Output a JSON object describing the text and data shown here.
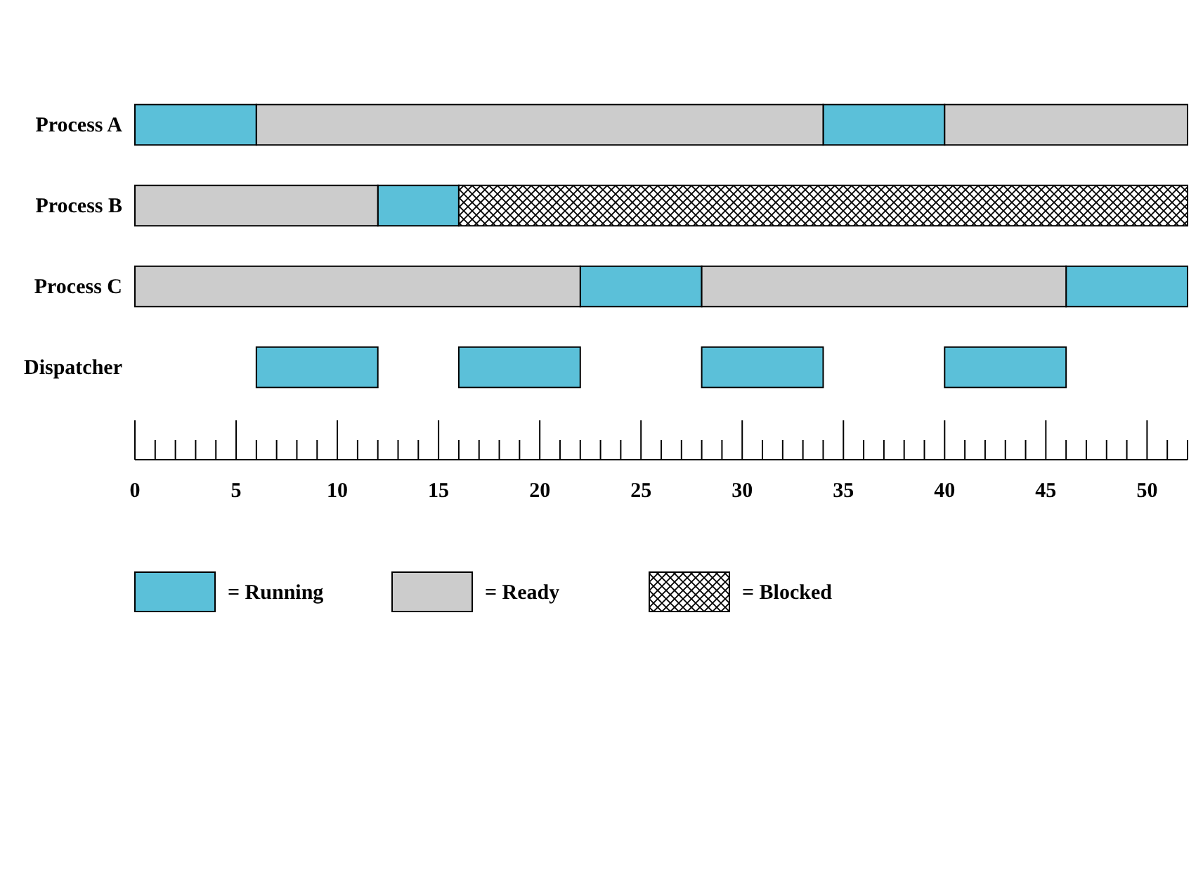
{
  "chart_data": {
    "type": "bar",
    "orientation": "horizontal",
    "categories": [
      "Process A",
      "Process B",
      "Process C",
      "Dispatcher"
    ],
    "series": [
      {
        "name": "= Running",
        "color": "#5bc0d9",
        "values": [
          6,
          4,
          6,
          6
        ],
        "base": [
          0,
          12,
          22,
          6
        ]
      },
      {
        "color": "#5bc0d9",
        "values": [
          6,
          null,
          6,
          6
        ],
        "base": [
          34,
          null,
          46,
          16
        ]
      },
      {
        "color": "#5bc0d9",
        "values": [
          null,
          null,
          null,
          6
        ],
        "base": [
          null,
          null,
          null,
          28
        ]
      },
      {
        "color": "#5bc0d9",
        "values": [
          null,
          null,
          null,
          6
        ],
        "base": [
          null,
          null,
          null,
          40
        ]
      },
      {
        "name": "= Ready",
        "color": "#cccccc",
        "values": [
          28,
          12,
          22,
          null
        ],
        "base": [
          6,
          0,
          0,
          null
        ]
      },
      {
        "color": "#cccccc",
        "values": [
          12,
          null,
          18,
          null
        ],
        "base": [
          40,
          null,
          28,
          null
        ]
      },
      {
        "name": "= Blocked",
        "color": "#000000",
        "values": [
          null,
          36,
          null,
          null
        ],
        "base": [
          null,
          16,
          null,
          null
        ]
      }
    ],
    "xlim": [
      0,
      52
    ],
    "xticks": [
      0,
      {
        "value": 1,
        "label": null
      },
      {
        "value": 2,
        "label": null
      },
      {
        "value": 3,
        "label": null
      },
      {
        "value": 4,
        "label": null
      },
      5,
      {
        "value": 6,
        "label": null
      },
      {
        "value": 7,
        "label": null
      },
      {
        "value": 8,
        "label": null
      },
      {
        "value": 9,
        "label": null
      },
      10,
      {
        "value": 11,
        "label": null
      },
      {
        "value": 12,
        "label": null
      },
      {
        "value": 13,
        "label": null
      },
      {
        "value": 14,
        "label": null
      },
      15,
      {
        "value": 16,
        "label": null
      },
      {
        "value": 17,
        "label": null
      },
      {
        "value": 18,
        "label": null
      },
      {
        "value": 19,
        "label": null
      },
      20,
      {
        "value": 21,
        "label": null
      },
      {
        "value": 22,
        "label": null
      },
      {
        "value": 23,
        "label": null
      },
      {
        "value": 24,
        "label": null
      },
      25,
      {
        "value": 26,
        "label": null
      },
      {
        "value": 27,
        "label": null
      },
      {
        "value": 28,
        "label": null
      },
      {
        "value": 29,
        "label": null
      },
      30,
      {
        "value": 31,
        "label": null
      },
      {
        "value": 32,
        "label": null
      },
      {
        "value": 33,
        "label": null
      },
      {
        "value": 34,
        "label": null
      },
      35,
      {
        "value": 36,
        "label": null
      },
      {
        "value": 37,
        "label": null
      },
      {
        "value": 38,
        "label": null
      },
      {
        "value": 39,
        "label": null
      },
      40,
      {
        "value": 41,
        "label": null
      },
      {
        "value": 42,
        "label": null
      },
      {
        "value": 43,
        "label": null
      },
      {
        "value": 44,
        "label": null
      },
      45,
      {
        "value": 46,
        "label": null
      },
      {
        "value": 47,
        "label": null
      },
      {
        "value": 48,
        "label": null
      },
      {
        "value": 49,
        "label": null
      },
      50,
      {
        "value": 51,
        "label": null
      },
      {
        "value": 52,
        "label": null
      }
    ],
    "grid": false,
    "legend": "bottom"
  }
}
